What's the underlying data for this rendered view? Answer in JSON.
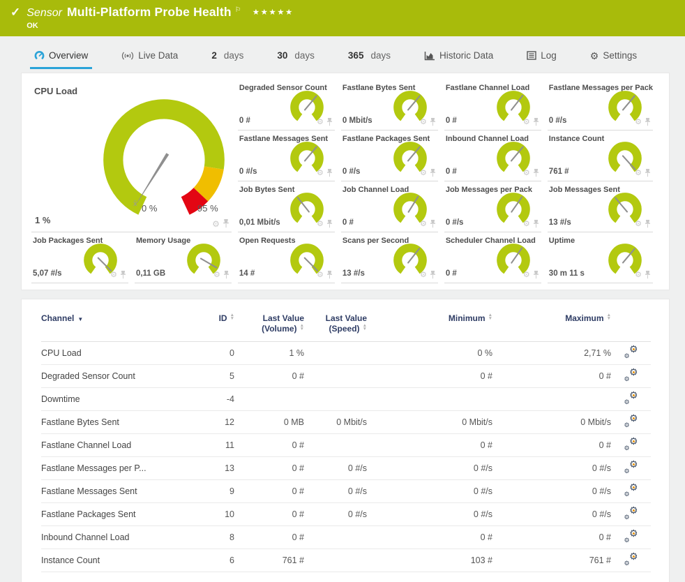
{
  "header": {
    "check_glyph": "✓",
    "kind": "Sensor",
    "title": "Multi-Platform Probe Health",
    "flag_glyph": "⚐",
    "stars": "★★★★★",
    "status": "OK"
  },
  "tabs": [
    {
      "label": "Overview",
      "active": true
    },
    {
      "label": "Live Data"
    },
    {
      "num": "2",
      "unit": "days"
    },
    {
      "num": "30",
      "unit": "days"
    },
    {
      "num": "365",
      "unit": "days"
    },
    {
      "label": "Historic Data"
    },
    {
      "label": "Log"
    },
    {
      "label": "Settings"
    }
  ],
  "colors": {
    "header_green": "#a8bb0b",
    "gauge_green": "#b3c90f",
    "gauge_yellow": "#f0be00",
    "gauge_red": "#e30613",
    "accent_blue": "#2aa3d8",
    "table_header_navy": "#2e3c64",
    "needle_gray": "#8f8f8f"
  },
  "chart_data": {
    "type": "gauge-dashboard",
    "big_gauge": {
      "title": "CPU Load",
      "value": "1 %",
      "scale_min": "0 %",
      "scale_max": "95 %",
      "avg_marker": "x̄",
      "needle_deg": 212,
      "segments": [
        {
          "color": "#b3c90f",
          "to_pct": 82
        },
        {
          "color": "#f0be00",
          "to_pct": 93
        },
        {
          "color": "#e30613",
          "to_pct": 100
        }
      ]
    },
    "gauges": [
      {
        "title": "Degraded Sensor Count",
        "value": "0 #",
        "needle_deg": 40
      },
      {
        "title": "Fastlane Bytes Sent",
        "value": "0 Mbit/s",
        "needle_deg": 40
      },
      {
        "title": "Fastlane Channel Load",
        "value": "0 #",
        "needle_deg": 38
      },
      {
        "title": "Fastlane Messages per Pack",
        "value": "0 #/s",
        "needle_deg": 40
      },
      {
        "title": "Fastlane Messages Sent",
        "value": "0 #/s",
        "needle_deg": 40
      },
      {
        "title": "Fastlane Packages Sent",
        "value": "0 #/s",
        "needle_deg": 40
      },
      {
        "title": "Inbound Channel Load",
        "value": "0 #",
        "needle_deg": 40
      },
      {
        "title": "Instance Count",
        "value": "761 #",
        "needle_deg": 138
      },
      {
        "title": "Job Bytes Sent",
        "value": "0,01 Mbit/s",
        "needle_deg": -38
      },
      {
        "title": "Job Channel Load",
        "value": "0 #",
        "needle_deg": 32
      },
      {
        "title": "Job Messages per Pack",
        "value": "0 #/s",
        "needle_deg": 35
      },
      {
        "title": "Job Messages Sent",
        "value": "13 #/s",
        "needle_deg": -40
      },
      {
        "title": "Job Packages Sent",
        "value": "5,07 #/s",
        "needle_deg": 135
      },
      {
        "title": "Memory Usage",
        "value": "0,11 GB",
        "needle_deg": 120
      },
      {
        "title": "Open Requests",
        "value": "14 #",
        "needle_deg": 135
      },
      {
        "title": "Scans per Second",
        "value": "13 #/s",
        "needle_deg": 38
      },
      {
        "title": "Scheduler Channel Load",
        "value": "0 #",
        "needle_deg": 35
      },
      {
        "title": "Uptime",
        "value": "30 m 11 s",
        "needle_deg": 40
      }
    ]
  },
  "table": {
    "columns": {
      "channel": "Channel",
      "id": "ID",
      "last_value_volume": [
        "Last Value",
        "(Volume)"
      ],
      "last_value_speed": [
        "Last Value",
        "(Speed)"
      ],
      "minimum": "Minimum",
      "maximum": "Maximum"
    },
    "rows": [
      {
        "channel": "CPU Load",
        "id": "0",
        "last_volume": "1 %",
        "last_speed": "",
        "minimum": "0 %",
        "maximum": "2,71 %"
      },
      {
        "channel": "Degraded Sensor Count",
        "id": "5",
        "last_volume": "0 #",
        "last_speed": "",
        "minimum": "0 #",
        "maximum": "0 #"
      },
      {
        "channel": "Downtime",
        "id": "-4",
        "last_volume": "",
        "last_speed": "",
        "minimum": "",
        "maximum": ""
      },
      {
        "channel": "Fastlane Bytes Sent",
        "id": "12",
        "last_volume": "0 MB",
        "last_speed": "0 Mbit/s",
        "minimum": "0 Mbit/s",
        "maximum": "0 Mbit/s"
      },
      {
        "channel": "Fastlane Channel Load",
        "id": "11",
        "last_volume": "0 #",
        "last_speed": "",
        "minimum": "0 #",
        "maximum": "0 #"
      },
      {
        "channel": "Fastlane Messages per P...",
        "id": "13",
        "last_volume": "0 #",
        "last_speed": "0 #/s",
        "minimum": "0 #/s",
        "maximum": "0 #/s"
      },
      {
        "channel": "Fastlane Messages Sent",
        "id": "9",
        "last_volume": "0 #",
        "last_speed": "0 #/s",
        "minimum": "0 #/s",
        "maximum": "0 #/s"
      },
      {
        "channel": "Fastlane Packages Sent",
        "id": "10",
        "last_volume": "0 #",
        "last_speed": "0 #/s",
        "minimum": "0 #/s",
        "maximum": "0 #/s"
      },
      {
        "channel": "Inbound Channel Load",
        "id": "8",
        "last_volume": "0 #",
        "last_speed": "",
        "minimum": "0 #",
        "maximum": "0 #"
      },
      {
        "channel": "Instance Count",
        "id": "6",
        "last_volume": "761 #",
        "last_speed": "",
        "minimum": "103 #",
        "maximum": "761 #"
      }
    ]
  }
}
